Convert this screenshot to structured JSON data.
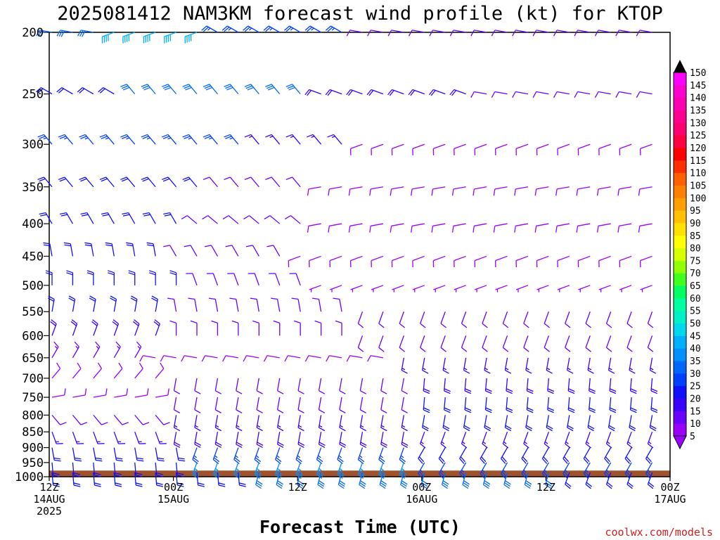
{
  "chart_data": {
    "type": "wind-barb time-height section",
    "title": "2025081412 NAM3KM forecast wind profile (kt) for KTOP",
    "xlabel": "Forecast Time (UTC)",
    "credit": "coolwx.com/models",
    "y_axis": {
      "scale": "log-pressure (hPa)",
      "range": [
        1000,
        200
      ],
      "ticks": [
        200,
        250,
        300,
        350,
        400,
        450,
        500,
        550,
        600,
        650,
        700,
        750,
        800,
        850,
        900,
        950,
        1000
      ]
    },
    "x_axis": {
      "range_hours": [
        0,
        60
      ],
      "ticks": [
        {
          "lines": [
            "12Z",
            "14AUG",
            "2025"
          ]
        },
        {
          "lines": [
            "00Z",
            "15AUG"
          ]
        },
        {
          "lines": [
            "12Z"
          ]
        },
        {
          "lines": [
            "00Z",
            "16AUG"
          ]
        },
        {
          "lines": [
            "12Z"
          ]
        },
        {
          "lines": [
            "00Z",
            "17AUG"
          ]
        }
      ]
    },
    "colorbar": {
      "levels": [
        5,
        10,
        15,
        20,
        25,
        30,
        35,
        40,
        45,
        50,
        55,
        60,
        65,
        70,
        75,
        80,
        85,
        90,
        95,
        100,
        105,
        110,
        115,
        120,
        125,
        130,
        135,
        140,
        145,
        150
      ],
      "colors": [
        "#9b00ff",
        "#6a00ff",
        "#3a00ff",
        "#1010ff",
        "#0040ff",
        "#0068ff",
        "#0090ff",
        "#00b0ff",
        "#00d8ee",
        "#00f0c8",
        "#00ffa0",
        "#00ff60",
        "#40ff20",
        "#90ff00",
        "#d8ff00",
        "#ffff00",
        "#ffe000",
        "#ffc000",
        "#ffa000",
        "#ff8000",
        "#ff6000",
        "#ff3000",
        "#ff0000",
        "#ff0040",
        "#ff0070",
        "#ff0090",
        "#ff00b0",
        "#ff00d0",
        "#ff00ff",
        "#000000"
      ]
    },
    "ground": {
      "color": "#a0522d",
      "top_hPa": 978
    },
    "wind_bands": [
      {
        "p": 200,
        "segments": [
          {
            "h0": 0,
            "h1": 6,
            "spd": 30,
            "dir": 280
          },
          {
            "h0": 6,
            "h1": 16,
            "spd": 40,
            "dir": 250
          },
          {
            "h0": 16,
            "h1": 30,
            "spd": 25,
            "dir": 300
          },
          {
            "h0": 30,
            "h1": 60,
            "spd": 12,
            "dir": 280
          }
        ]
      },
      {
        "p": 250,
        "segments": [
          {
            "h0": 0,
            "h1": 8,
            "spd": 20,
            "dir": 300
          },
          {
            "h0": 8,
            "h1": 26,
            "spd": 30,
            "dir": 320
          },
          {
            "h0": 26,
            "h1": 42,
            "spd": 18,
            "dir": 290
          },
          {
            "h0": 42,
            "h1": 60,
            "spd": 10,
            "dir": 280
          }
        ]
      },
      {
        "p": 300,
        "segments": [
          {
            "h0": 0,
            "h1": 20,
            "spd": 25,
            "dir": 320
          },
          {
            "h0": 20,
            "h1": 30,
            "spd": 15,
            "dir": 320
          },
          {
            "h0": 30,
            "h1": 60,
            "spd": 9,
            "dir": 250
          }
        ]
      },
      {
        "p": 350,
        "segments": [
          {
            "h0": 0,
            "h1": 16,
            "spd": 22,
            "dir": 320
          },
          {
            "h0": 16,
            "h1": 26,
            "spd": 12,
            "dir": 320
          },
          {
            "h0": 26,
            "h1": 60,
            "spd": 9,
            "dir": 260
          }
        ]
      },
      {
        "p": 400,
        "segments": [
          {
            "h0": 0,
            "h1": 14,
            "spd": 20,
            "dir": 330
          },
          {
            "h0": 14,
            "h1": 26,
            "spd": 12,
            "dir": 310
          },
          {
            "h0": 26,
            "h1": 60,
            "spd": 8,
            "dir": 260
          }
        ]
      },
      {
        "p": 450,
        "segments": [
          {
            "h0": 0,
            "h1": 12,
            "spd": 20,
            "dir": 350
          },
          {
            "h0": 12,
            "h1": 24,
            "spd": 12,
            "dir": 330
          },
          {
            "h0": 24,
            "h1": 60,
            "spd": 8,
            "dir": 250
          }
        ]
      },
      {
        "p": 500,
        "segments": [
          {
            "h0": 0,
            "h1": 14,
            "spd": 20,
            "dir": 360
          },
          {
            "h0": 14,
            "h1": 26,
            "spd": 12,
            "dir": 340
          },
          {
            "h0": 26,
            "h1": 60,
            "spd": 7,
            "dir": 250
          }
        ]
      },
      {
        "p": 550,
        "segments": [
          {
            "h0": 0,
            "h1": 12,
            "spd": 20,
            "dir": 10
          },
          {
            "h0": 12,
            "h1": 30,
            "spd": 10,
            "dir": 350
          },
          {
            "h0": 30,
            "h1": 60,
            "spd": 10,
            "dir": 200
          }
        ]
      },
      {
        "p": 600,
        "segments": [
          {
            "h0": 0,
            "h1": 12,
            "spd": 18,
            "dir": 20
          },
          {
            "h0": 12,
            "h1": 30,
            "spd": 10,
            "dir": 360
          },
          {
            "h0": 30,
            "h1": 60,
            "spd": 12,
            "dir": 200
          }
        ]
      },
      {
        "p": 650,
        "segments": [
          {
            "h0": 0,
            "h1": 10,
            "spd": 14,
            "dir": 30
          },
          {
            "h0": 10,
            "h1": 34,
            "spd": 8,
            "dir": 280
          },
          {
            "h0": 34,
            "h1": 60,
            "spd": 16,
            "dir": 190
          }
        ]
      },
      {
        "p": 700,
        "segments": [
          {
            "h0": 0,
            "h1": 12,
            "spd": 8,
            "dir": 40
          },
          {
            "h0": 12,
            "h1": 36,
            "spd": 10,
            "dir": 190
          },
          {
            "h0": 36,
            "h1": 60,
            "spd": 18,
            "dir": 185
          }
        ]
      },
      {
        "p": 750,
        "segments": [
          {
            "h0": 0,
            "h1": 12,
            "spd": 8,
            "dir": 80
          },
          {
            "h0": 12,
            "h1": 36,
            "spd": 12,
            "dir": 190
          },
          {
            "h0": 36,
            "h1": 60,
            "spd": 22,
            "dir": 185
          }
        ]
      },
      {
        "p": 800,
        "segments": [
          {
            "h0": 0,
            "h1": 12,
            "spd": 10,
            "dir": 140
          },
          {
            "h0": 12,
            "h1": 36,
            "spd": 15,
            "dir": 190
          },
          {
            "h0": 36,
            "h1": 60,
            "spd": 20,
            "dir": 190
          }
        ]
      },
      {
        "p": 850,
        "segments": [
          {
            "h0": 0,
            "h1": 12,
            "spd": 15,
            "dir": 160
          },
          {
            "h0": 12,
            "h1": 36,
            "spd": 18,
            "dir": 190
          },
          {
            "h0": 36,
            "h1": 60,
            "spd": 15,
            "dir": 200
          }
        ]
      },
      {
        "p": 900,
        "segments": [
          {
            "h0": 0,
            "h1": 14,
            "spd": 20,
            "dir": 170
          },
          {
            "h0": 14,
            "h1": 36,
            "spd": 25,
            "dir": 200
          },
          {
            "h0": 36,
            "h1": 60,
            "spd": 20,
            "dir": 210
          }
        ]
      },
      {
        "p": 950,
        "segments": [
          {
            "h0": 0,
            "h1": 14,
            "spd": 22,
            "dir": 175
          },
          {
            "h0": 14,
            "h1": 36,
            "spd": 35,
            "dir": 200
          },
          {
            "h0": 36,
            "h1": 60,
            "spd": 25,
            "dir": 210
          }
        ]
      },
      {
        "p": 1000,
        "segments": [
          {
            "h0": 0,
            "h1": 20,
            "spd": 20,
            "dir": 175
          },
          {
            "h0": 20,
            "h1": 50,
            "spd": 30,
            "dir": 195
          },
          {
            "h0": 50,
            "h1": 60,
            "spd": 20,
            "dir": 200
          }
        ]
      }
    ]
  }
}
